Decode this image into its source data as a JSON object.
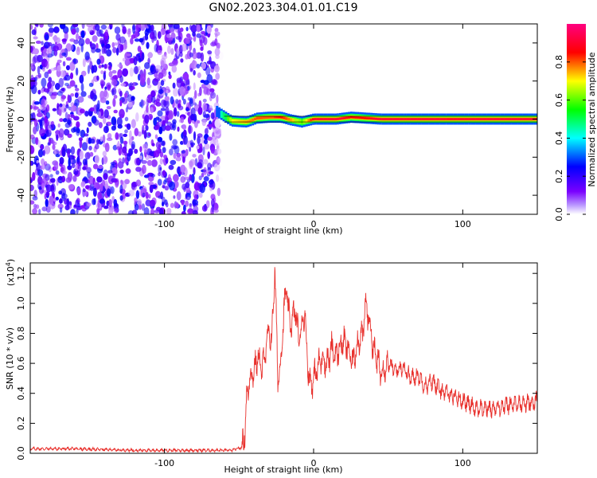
{
  "title": "GN02.2023.304.01.01.C19",
  "chart_data": [
    {
      "type": "heatmap",
      "xlabel": "Height of straight line (km)",
      "ylabel": "Frequency (Hz)",
      "xlim": [
        -190,
        150
      ],
      "ylim": [
        -50,
        50
      ],
      "xticks": [
        -100,
        0,
        100
      ],
      "yticks": [
        -40,
        -20,
        0,
        20,
        40
      ],
      "colorbar": {
        "label": "Normalized spectral amplitude",
        "range": [
          0.0,
          1.0
        ],
        "ticks": [
          "0.0",
          "0.2",
          "0.4",
          "0.6",
          "0.8"
        ],
        "colors": [
          "#ffffff",
          "#7a00ff",
          "#0000ff",
          "#00ffff",
          "#00ff00",
          "#ffff00",
          "#ff0000",
          "#ff0080"
        ]
      },
      "noise_region": {
        "x_range": [
          -190,
          -62
        ],
        "y_range": [
          -50,
          50
        ],
        "level": 0.25
      },
      "signal_track": [
        {
          "x": -65,
          "f": 4.0,
          "amp": 0.35
        },
        {
          "x": -60,
          "f": 1.5,
          "amp": 0.5
        },
        {
          "x": -55,
          "f": -1.0,
          "amp": 0.7
        },
        {
          "x": -45,
          "f": -1.5,
          "amp": 0.75
        },
        {
          "x": -38,
          "f": 0.5,
          "amp": 0.8
        },
        {
          "x": -30,
          "f": 1.0,
          "amp": 0.8
        },
        {
          "x": -22,
          "f": 1.0,
          "amp": 0.85
        },
        {
          "x": -15,
          "f": -0.5,
          "amp": 0.75
        },
        {
          "x": -8,
          "f": -1.5,
          "amp": 0.6
        },
        {
          "x": 0,
          "f": 0.0,
          "amp": 0.9
        },
        {
          "x": 15,
          "f": 0.0,
          "amp": 0.95
        },
        {
          "x": 25,
          "f": 1.0,
          "amp": 0.85
        },
        {
          "x": 35,
          "f": 0.5,
          "amp": 0.85
        },
        {
          "x": 45,
          "f": 0.0,
          "amp": 0.95
        },
        {
          "x": 80,
          "f": 0.0,
          "amp": 0.95
        },
        {
          "x": 90,
          "f": 0.0,
          "amp": 0.9
        },
        {
          "x": 150,
          "f": 0.0,
          "amp": 0.95
        }
      ]
    },
    {
      "type": "line",
      "xlabel": "Height of straight line (km)",
      "ylabel": "SNR (10 * v/v)",
      "yscale_label": "(x10",
      "yscale_exp": "4",
      "yscale_close": ")",
      "xlim": [
        -190,
        150
      ],
      "ylim": [
        0,
        1.27
      ],
      "xticks": [
        -100,
        0,
        100
      ],
      "yticks": [
        "0.0",
        "0.2",
        "0.4",
        "0.6",
        "0.8",
        "1.0",
        "1.2"
      ],
      "color": "#e8302c",
      "series": [
        {
          "x": [
            -190,
            -160,
            -120,
            -80,
            -55,
            -48,
            -46,
            -45,
            -43,
            -40,
            -37,
            -35,
            -32,
            -30,
            -28,
            -26,
            -24,
            -22,
            -20,
            -18,
            -16,
            -14,
            -12,
            -10,
            -8,
            -6,
            -4,
            -2,
            0,
            2,
            4,
            6,
            8,
            10,
            12,
            15,
            18,
            20,
            23,
            26,
            28,
            30,
            33,
            35,
            38,
            40,
            45,
            50,
            55,
            60,
            65,
            70,
            75,
            80,
            85,
            90,
            95,
            100,
            110,
            120,
            130,
            140,
            150
          ],
          "y": [
            0.03,
            0.03,
            0.02,
            0.02,
            0.02,
            0.04,
            0.15,
            0.35,
            0.5,
            0.55,
            0.65,
            0.55,
            0.7,
            0.8,
            0.75,
            1.25,
            0.5,
            0.6,
            0.95,
            1.1,
            0.85,
            0.9,
            0.95,
            0.75,
            0.85,
            0.95,
            0.6,
            0.45,
            0.5,
            0.55,
            0.6,
            0.65,
            0.6,
            0.62,
            0.7,
            0.65,
            0.72,
            0.75,
            0.7,
            0.6,
            0.68,
            0.75,
            0.8,
            1.0,
            0.85,
            0.7,
            0.55,
            0.6,
            0.55,
            0.58,
            0.5,
            0.52,
            0.45,
            0.48,
            0.42,
            0.4,
            0.38,
            0.35,
            0.3,
            0.3,
            0.32,
            0.33,
            0.35
          ]
        }
      ]
    }
  ]
}
